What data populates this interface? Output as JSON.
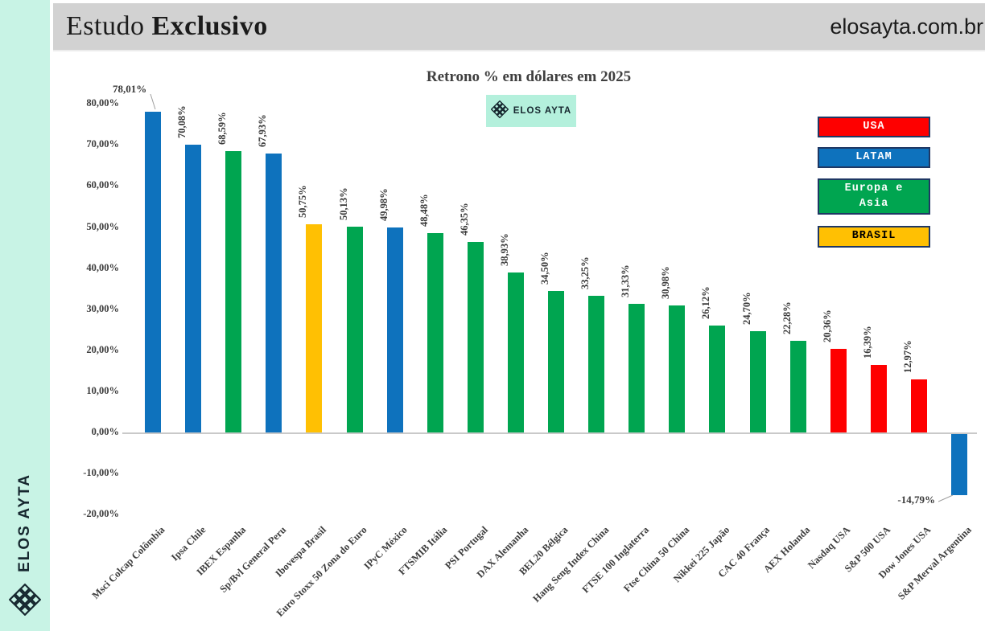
{
  "sidebar": {
    "brand": "ELOS AYTA"
  },
  "header": {
    "title_regular": "Estudo ",
    "title_bold": "Exclusivo",
    "site": "elosayta.com.br"
  },
  "chart_data": {
    "type": "bar",
    "title": "Retrono % em dólares em 2025",
    "badge_label": "ELOS AYTA",
    "categories": [
      "Msci Colcap Colômbia",
      "Ipsa Chile",
      "IBEX Espanha",
      "Sp/Bvl General Peru",
      "Ibovespa Brasil",
      "Euro Stoxx 50 Zona do Euro",
      "IPyC México",
      "FTSMIB Itália",
      "PSI Portugal",
      "DAX Alemanha",
      "BEL20 Bélgica",
      "Hang Seng Index China",
      "FTSE 100 Inglaterra",
      "Ftse China 50 China",
      "Nikkei 225 Japão",
      "CAC 40 França",
      "AEX Holanda",
      "Nasdaq USA",
      "S&P 500 USA",
      "Dow Jones USA",
      "S&P Merval Argentina"
    ],
    "values": [
      78.01,
      70.08,
      68.59,
      67.93,
      50.75,
      50.13,
      49.98,
      48.48,
      46.35,
      38.93,
      34.5,
      33.25,
      31.33,
      30.98,
      26.12,
      24.7,
      22.28,
      20.36,
      16.39,
      12.97,
      -14.79
    ],
    "value_labels": [
      "78,01%",
      "70,08%",
      "68,59%",
      "67,93%",
      "50,75%",
      "50,13%",
      "49,98%",
      "48,48%",
      "46,35%",
      "38,93%",
      "34,50%",
      "33,25%",
      "31,33%",
      "30,98%",
      "26,12%",
      "24,70%",
      "22,28%",
      "20,36%",
      "16,39%",
      "12,97%",
      "-14,79%"
    ],
    "groups": [
      "LATAM",
      "LATAM",
      "EUROPA_ASIA",
      "LATAM",
      "BRASIL",
      "EUROPA_ASIA",
      "LATAM",
      "EUROPA_ASIA",
      "EUROPA_ASIA",
      "EUROPA_ASIA",
      "EUROPA_ASIA",
      "EUROPA_ASIA",
      "EUROPA_ASIA",
      "EUROPA_ASIA",
      "EUROPA_ASIA",
      "EUROPA_ASIA",
      "EUROPA_ASIA",
      "USA",
      "USA",
      "USA",
      "LATAM"
    ],
    "group_colors": {
      "USA": "#fe0000",
      "LATAM": "#0e72bd",
      "EUROPA_ASIA": "#00a550",
      "BRASIL": "#ffc003"
    },
    "y_ticks": [
      {
        "value": 80,
        "label": "80,00%"
      },
      {
        "value": 70,
        "label": "70,00%"
      },
      {
        "value": 60,
        "label": "60,00%"
      },
      {
        "value": 50,
        "label": "50,00%"
      },
      {
        "value": 40,
        "label": "40,00%"
      },
      {
        "value": 30,
        "label": "30,00%"
      },
      {
        "value": 20,
        "label": "20,00%"
      },
      {
        "value": 10,
        "label": "10,00%"
      },
      {
        "value": 0,
        "label": "0,00%"
      },
      {
        "value": -10,
        "label": "-10,00%"
      },
      {
        "value": -20,
        "label": "-20,00%"
      }
    ],
    "ylim": [
      -20,
      80
    ],
    "grid": false,
    "legend_position": "right",
    "legend": [
      {
        "group": "USA",
        "lines": [
          "USA"
        ],
        "fill": "#fe0000",
        "text_color": "#ffffff"
      },
      {
        "group": "LATAM",
        "lines": [
          "LATAM"
        ],
        "fill": "#0e72bd",
        "text_color": "#ffffff"
      },
      {
        "group": "EUROPA_ASIA",
        "lines": [
          "Europa e",
          "Asia"
        ],
        "fill": "#00a550",
        "text_color": "#ffffff"
      },
      {
        "group": "BRASIL",
        "lines": [
          "BRASIL"
        ],
        "fill": "#ffc003",
        "text_color": "#000000"
      }
    ]
  }
}
